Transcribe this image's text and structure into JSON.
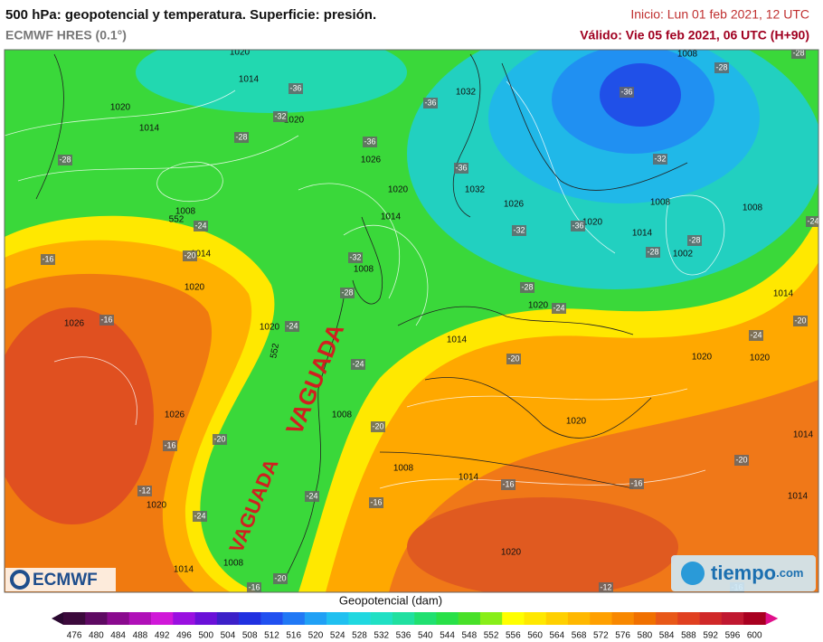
{
  "header": {
    "title": "500 hPa: geopotencial y temperatura. Superficie: presión.",
    "subtitle": "ECMWF HRES (0.1°)",
    "init": "Inicio: Lun 01 feb 2021, 12 UTC",
    "valid": "Válido: Vie 05 feb 2021, 06 UTC (H+90)"
  },
  "map": {
    "pressure_labels": [
      "1020",
      "1014",
      "1020",
      "1014",
      "1020",
      "1026",
      "1032",
      "1020",
      "1014",
      "1032",
      "1026",
      "1020",
      "1008",
      "1014",
      "1002",
      "1008",
      "1008",
      "1008",
      "1014",
      "1020",
      "1026",
      "1020",
      "1014",
      "1020",
      "1008",
      "1026",
      "1020",
      "1014",
      "1008",
      "1008",
      "1008",
      "1014",
      "1020",
      "1020",
      "1020",
      "1014",
      "1014",
      "1014",
      "1020"
    ],
    "temperature_labels": [
      "-36",
      "-32",
      "-28",
      "-36",
      "-36",
      "-36",
      "-36",
      "-32",
      "-28",
      "-28",
      "-28",
      "-24",
      "-20",
      "-16",
      "-16",
      "-24",
      "-32",
      "-28",
      "-32",
      "-36",
      "-28",
      "-28",
      "-28",
      "-24",
      "-24",
      "-20",
      "-24",
      "-20",
      "-24",
      "-20",
      "-16",
      "-12",
      "-24",
      "-24",
      "-20",
      "-16",
      "-16",
      "-16",
      "-20",
      "-20",
      "-16",
      "-12",
      "-16"
    ],
    "contour_labels": [
      "552",
      "552"
    ],
    "annotations": [
      "VAGUADA",
      "VAGUADA"
    ]
  },
  "legend": {
    "label": "Geopotencial (dam)",
    "ticks": [
      476,
      480,
      484,
      488,
      492,
      496,
      500,
      504,
      508,
      512,
      516,
      520,
      524,
      528,
      532,
      536,
      540,
      544,
      548,
      552,
      556,
      560,
      564,
      568,
      572,
      576,
      580,
      584,
      588,
      592,
      596,
      600
    ],
    "colors": [
      "#3c0a3c",
      "#5e0a62",
      "#8a0a8e",
      "#b010b8",
      "#d018d8",
      "#9a10e0",
      "#6a10d8",
      "#3c20c8",
      "#2030e0",
      "#2050f0",
      "#2078f5",
      "#20a0f5",
      "#20c0f0",
      "#20d8e0",
      "#20e0c4",
      "#20e0a0",
      "#20e070",
      "#28e048",
      "#48e028",
      "#88ee18",
      "#ffff00",
      "#ffe800",
      "#ffd000",
      "#ffb800",
      "#ffa000",
      "#f88800",
      "#f07000",
      "#e85818",
      "#e04020",
      "#d02828",
      "#c01830",
      "#a80020"
    ],
    "under_color": "#2a0830",
    "over_color": "#e0108a"
  },
  "logos": {
    "left": "ECMWF",
    "right": "tiempo",
    "right_suffix": ".com"
  }
}
